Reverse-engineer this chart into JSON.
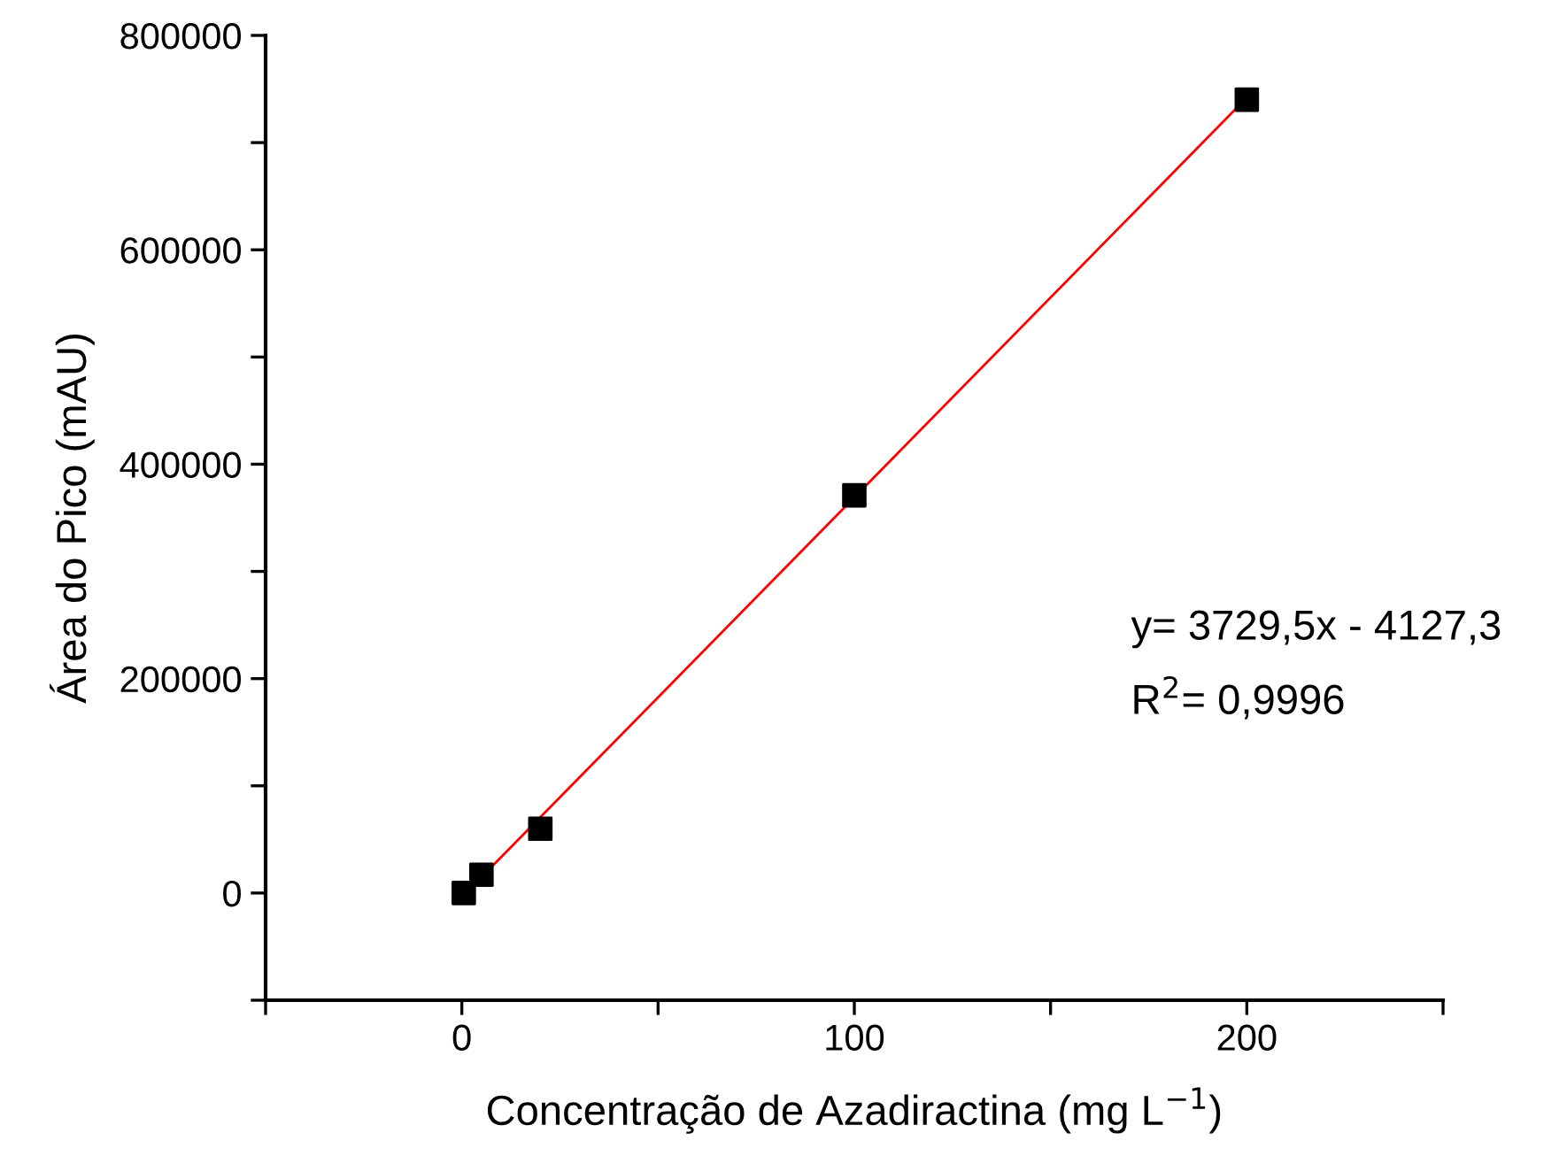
{
  "chart_data": {
    "type": "scatter",
    "xlabel": "Concentração de Azadiractina (mg L$^{−1}$)",
    "ylabel": "Área do Pico (mAU)",
    "xlim": [
      -50,
      250
    ],
    "xticks": [
      {
        "value": -50,
        "label": null
      },
      0,
      {
        "value": 50,
        "label": null
      },
      100,
      {
        "value": 150,
        "label": null
      },
      200,
      {
        "value": 250,
        "label": null
      }
    ],
    "ylim": [
      -100000,
      800000
    ],
    "yticks": [
      {
        "value": -100000,
        "label": null
      },
      0,
      {
        "value": 100000,
        "label": null
      },
      200000,
      {
        "value": 300000,
        "label": null
      },
      400000,
      {
        "value": 500000,
        "label": null
      },
      600000,
      {
        "value": 700000,
        "label": null
      },
      800000
    ],
    "grid": false,
    "legend": false,
    "series": [
      {
        "color": "#000000",
        "marker": "square",
        "x": [
          0.5,
          5,
          20,
          100,
          200
        ],
        "values": [
          0,
          17000,
          60000,
          371000,
          740000
        ]
      },
      {
        "type": "line",
        "color": "#ff0000",
        "x": [
          0.5,
          200
        ],
        "values": [
          -2000,
          742000
        ]
      }
    ],
    "annotations": [
      "y= 3729,5x - 4127,3",
      "R$^{2}$= 0,9996"
    ]
  }
}
